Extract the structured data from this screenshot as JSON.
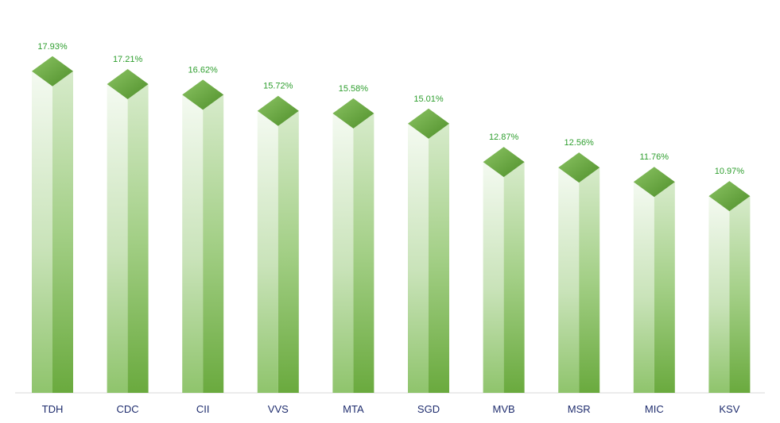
{
  "chart_data": {
    "type": "bar",
    "categories": [
      "TDH",
      "CDC",
      "CII",
      "VVS",
      "MTA",
      "SGD",
      "MVB",
      "MSR",
      "MIC",
      "KSV"
    ],
    "values": [
      17.93,
      17.21,
      16.62,
      15.72,
      15.58,
      15.01,
      12.87,
      12.56,
      11.76,
      10.97
    ],
    "data_labels": [
      "17.93%",
      "17.21%",
      "16.62%",
      "15.72%",
      "15.58%",
      "15.01%",
      "12.87%",
      "12.56%",
      "11.76%",
      "10.97%"
    ],
    "title": "",
    "xlabel": "",
    "ylabel": "",
    "ylim": [
      0,
      20
    ],
    "grid": false,
    "legend": "none",
    "bar_style": "3d-column"
  },
  "colors": {
    "bar_light": "#eef6ea",
    "bar_mid": "#a8d090",
    "bar_dark": "#6aaa3e",
    "top_face": "#6cad47",
    "value_label": "#2e9e2e",
    "category_label": "#1f2d6e",
    "axis_line": "#d9d9d9"
  }
}
